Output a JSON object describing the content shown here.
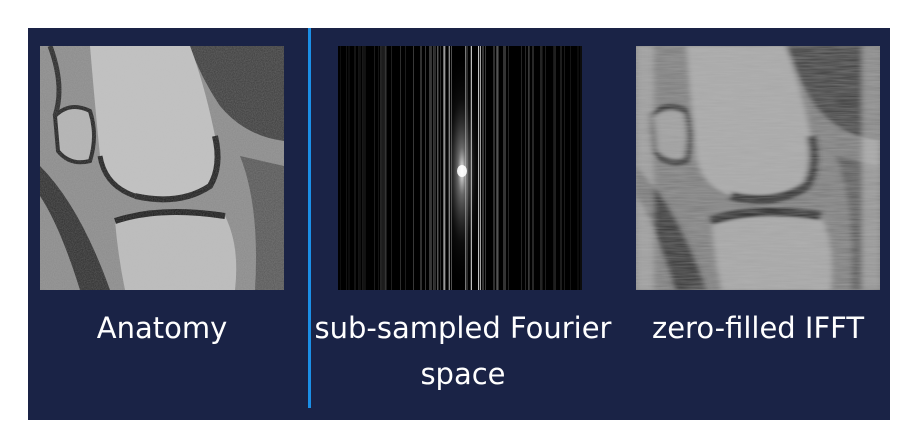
{
  "panels": [
    {
      "caption": "Anatomy",
      "icon": "knee-mri-anatomy-image"
    },
    {
      "caption_line1": "sub-sampled Fourier",
      "caption_line2": "space",
      "icon": "k-space-image"
    },
    {
      "caption": "zero-filled IFFT",
      "icon": "blurred-reconstruction-image"
    }
  ],
  "colors": {
    "background": "#1a2346",
    "divider": "#1b8fe6",
    "text": "#ffffff"
  }
}
